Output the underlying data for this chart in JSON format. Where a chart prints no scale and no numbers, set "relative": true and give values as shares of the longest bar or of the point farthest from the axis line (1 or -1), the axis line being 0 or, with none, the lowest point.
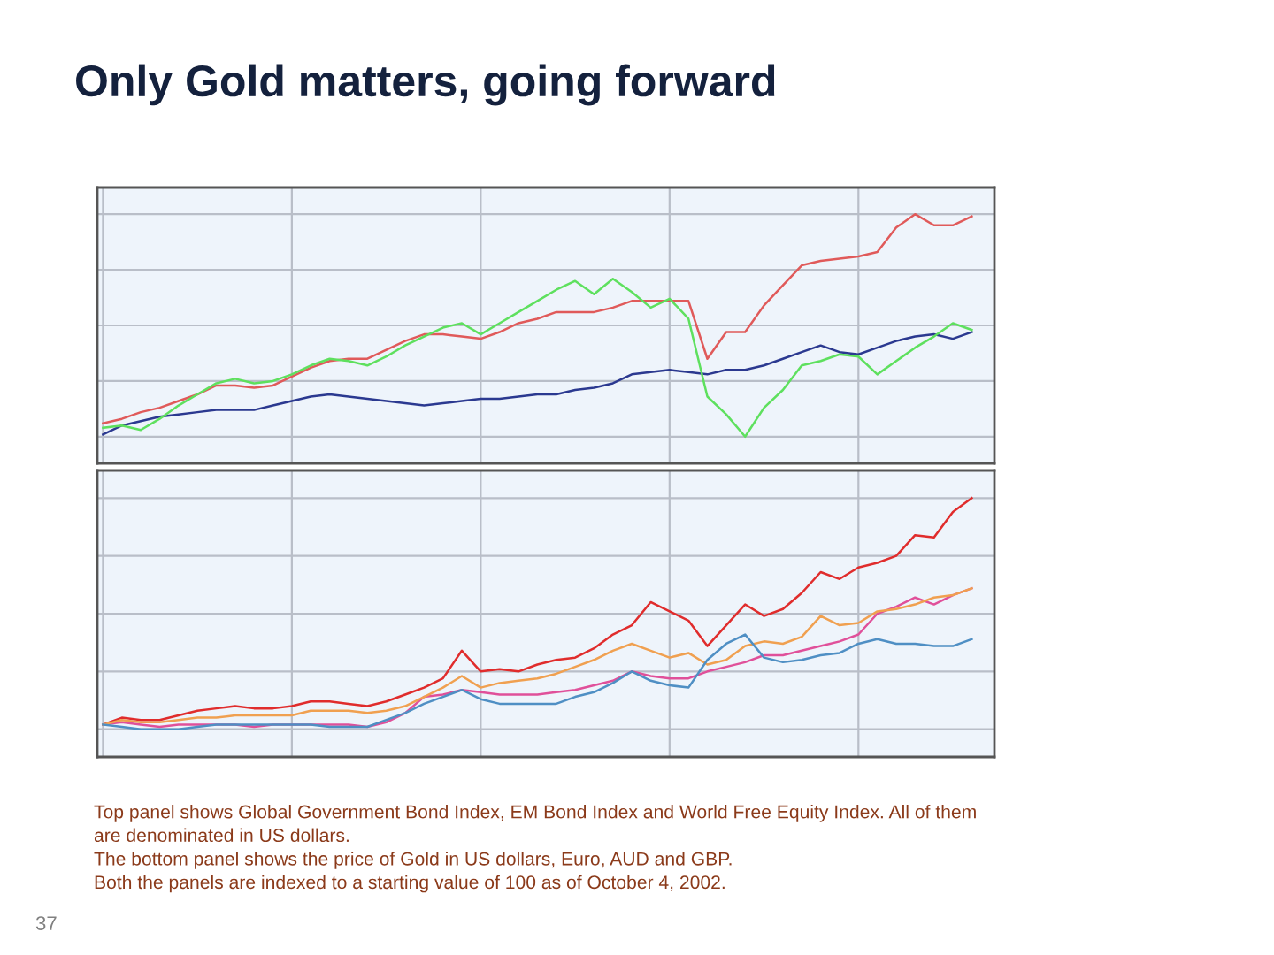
{
  "chart_data": [
    {
      "type": "line",
      "title": "Only Gold matters, going forward",
      "relative": true,
      "grid": true,
      "categories": [
        null,
        null,
        null,
        null,
        null,
        null,
        null,
        null,
        null,
        null,
        null,
        null,
        null,
        null,
        null,
        null,
        null,
        null,
        null,
        null,
        null,
        null,
        null,
        null,
        null,
        null,
        null,
        null,
        null,
        null,
        null,
        null,
        null,
        null,
        null,
        null,
        null,
        null,
        null,
        null,
        null,
        null,
        null,
        null,
        null,
        null,
        null
      ],
      "series": [
        {
          "color": "#e05a5a",
          "values": [
            0.06,
            0.08,
            0.11,
            0.13,
            0.16,
            0.19,
            0.23,
            0.23,
            0.22,
            0.23,
            0.27,
            0.31,
            0.34,
            0.35,
            0.35,
            0.39,
            0.43,
            0.46,
            0.46,
            0.45,
            0.44,
            0.47,
            0.51,
            0.53,
            0.56,
            0.56,
            0.56,
            0.58,
            0.61,
            0.61,
            0.61,
            0.61,
            0.35,
            0.47,
            0.47,
            0.59,
            0.68,
            0.77,
            0.79,
            0.8,
            0.81,
            0.83,
            0.94,
            1.0,
            0.95,
            0.95,
            0.99
          ]
        },
        {
          "color": "#2b3990",
          "values": [
            0.01,
            0.05,
            0.07,
            0.09,
            0.1,
            0.11,
            0.12,
            0.12,
            0.12,
            0.14,
            0.16,
            0.18,
            0.19,
            0.18,
            0.17,
            0.16,
            0.15,
            0.14,
            0.15,
            0.16,
            0.17,
            0.17,
            0.18,
            0.19,
            0.19,
            0.21,
            0.22,
            0.24,
            0.28,
            0.29,
            0.3,
            0.29,
            0.28,
            0.3,
            0.3,
            0.32,
            0.35,
            0.38,
            0.41,
            0.38,
            0.37,
            0.4,
            0.43,
            0.45,
            0.46,
            0.44,
            0.47
          ]
        },
        {
          "color": "#5ee05e",
          "values": [
            0.04,
            0.05,
            0.03,
            0.08,
            0.14,
            0.19,
            0.24,
            0.26,
            0.24,
            0.25,
            0.28,
            0.32,
            0.35,
            0.34,
            0.32,
            0.36,
            0.41,
            0.45,
            0.49,
            0.51,
            0.46,
            0.51,
            0.56,
            0.61,
            0.66,
            0.7,
            0.64,
            0.71,
            0.65,
            0.58,
            0.62,
            0.53,
            0.18,
            0.1,
            0.0,
            0.13,
            0.21,
            0.32,
            0.34,
            0.37,
            0.36,
            0.28,
            0.34,
            0.4,
            0.45,
            0.51,
            0.48
          ]
        }
      ]
    },
    {
      "type": "line",
      "relative": true,
      "grid": true,
      "categories": [
        null,
        null,
        null,
        null,
        null,
        null,
        null,
        null,
        null,
        null,
        null,
        null,
        null,
        null,
        null,
        null,
        null,
        null,
        null,
        null,
        null,
        null,
        null,
        null,
        null,
        null,
        null,
        null,
        null,
        null,
        null,
        null,
        null,
        null,
        null,
        null,
        null,
        null,
        null,
        null,
        null,
        null,
        null,
        null,
        null,
        null,
        null
      ],
      "series": [
        {
          "color": "#e02c2c",
          "values": [
            0.02,
            0.05,
            0.04,
            0.04,
            0.06,
            0.08,
            0.09,
            0.1,
            0.09,
            0.09,
            0.1,
            0.12,
            0.12,
            0.11,
            0.1,
            0.12,
            0.15,
            0.18,
            0.22,
            0.34,
            0.25,
            0.26,
            0.25,
            0.28,
            0.3,
            0.31,
            0.35,
            0.41,
            0.45,
            0.55,
            0.51,
            0.47,
            0.36,
            0.45,
            0.54,
            0.49,
            0.52,
            0.59,
            0.68,
            0.65,
            0.7,
            0.72,
            0.75,
            0.84,
            0.83,
            0.94,
            1.0
          ]
        },
        {
          "color": "#e0509a",
          "values": [
            0.02,
            0.03,
            0.02,
            0.01,
            0.02,
            0.02,
            0.02,
            0.02,
            0.01,
            0.02,
            0.02,
            0.02,
            0.02,
            0.02,
            0.01,
            0.03,
            0.07,
            0.14,
            0.15,
            0.17,
            0.16,
            0.15,
            0.15,
            0.15,
            0.16,
            0.17,
            0.19,
            0.21,
            0.25,
            0.23,
            0.22,
            0.22,
            0.25,
            0.27,
            0.29,
            0.32,
            0.32,
            0.34,
            0.36,
            0.38,
            0.41,
            0.5,
            0.53,
            0.57,
            0.54,
            0.58,
            0.61
          ]
        },
        {
          "color": "#f0a050",
          "values": [
            0.02,
            0.04,
            0.03,
            0.03,
            0.04,
            0.05,
            0.05,
            0.06,
            0.06,
            0.06,
            0.06,
            0.08,
            0.08,
            0.08,
            0.07,
            0.08,
            0.1,
            0.14,
            0.18,
            0.23,
            0.18,
            0.2,
            0.21,
            0.22,
            0.24,
            0.27,
            0.3,
            0.34,
            0.37,
            0.34,
            0.31,
            0.33,
            0.28,
            0.3,
            0.36,
            0.38,
            0.37,
            0.4,
            0.49,
            0.45,
            0.46,
            0.51,
            0.52,
            0.54,
            0.57,
            0.58,
            0.61
          ]
        },
        {
          "color": "#4f8fc4",
          "values": [
            0.02,
            0.01,
            0.0,
            0.0,
            0.0,
            0.01,
            0.02,
            0.02,
            0.02,
            0.02,
            0.02,
            0.02,
            0.01,
            0.01,
            0.01,
            0.04,
            0.07,
            0.11,
            0.14,
            0.17,
            0.13,
            0.11,
            0.11,
            0.11,
            0.11,
            0.14,
            0.16,
            0.2,
            0.25,
            0.21,
            0.19,
            0.18,
            0.3,
            0.37,
            0.41,
            0.31,
            0.29,
            0.3,
            0.32,
            0.33,
            0.37,
            0.39,
            0.37,
            0.37,
            0.36,
            0.36,
            0.39
          ]
        }
      ],
      "annotations": [
        "Top panel shows Global Government Bond Index, EM Bond Index and World Free Equity Index. All of them are denominated in US dollars.",
        "The bottom panel shows the price of Gold in US dollars, Euro, AUD and GBP.",
        "Both the panels are indexed to a starting value of 100 as of October 4, 2002.",
        "37"
      ]
    }
  ]
}
